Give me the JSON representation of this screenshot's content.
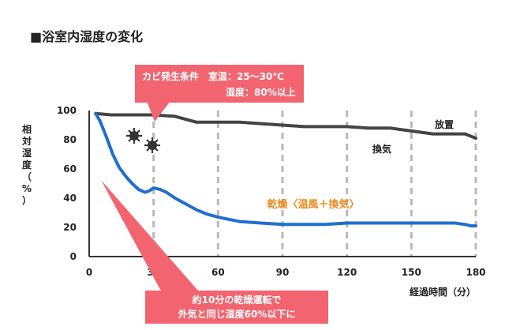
{
  "chart_data": {
    "type": "line",
    "title": "■浴室内湿度の変化",
    "xlabel": "経過時間（分）",
    "ylabel": "相対湿度（%）",
    "ylabel_chars": [
      "相",
      "対",
      "湿",
      "度",
      "（",
      "%",
      "）"
    ],
    "xlim": [
      0,
      180
    ],
    "ylim": [
      0,
      100
    ],
    "x_ticks": [
      "0",
      "30",
      "60",
      "90",
      "120",
      "150",
      "180"
    ],
    "y_ticks": [
      "100",
      "80",
      "60",
      "40",
      "20",
      "0"
    ],
    "grid": "vertical dashed",
    "series": [
      {
        "name": "放置",
        "color": "#444444",
        "x": [
          3,
          10,
          20,
          30,
          40,
          50,
          55,
          60,
          70,
          80,
          90,
          100,
          110,
          120,
          130,
          140,
          150,
          160,
          170,
          175,
          180
        ],
        "y": [
          98,
          97,
          97,
          97,
          96,
          92,
          92,
          92,
          92,
          91,
          90,
          89,
          89,
          89,
          88,
          88,
          86,
          84,
          84,
          84,
          81
        ]
      },
      {
        "name": "換気",
        "color": "#444444",
        "x": [],
        "y": []
      },
      {
        "name": "乾燥〈温風＋換気〉",
        "color": "#1f6fd0",
        "x": [
          3,
          5,
          8,
          11,
          14,
          17,
          20,
          23,
          26,
          28,
          30,
          33,
          36,
          40,
          45,
          50,
          55,
          60,
          70,
          80,
          90,
          100,
          110,
          120,
          130,
          140,
          150,
          160,
          170,
          175,
          178,
          180
        ],
        "y": [
          98,
          93,
          82,
          70,
          61,
          55,
          50,
          46,
          44,
          45,
          47,
          46,
          44,
          40,
          36,
          32,
          29,
          27,
          24,
          23,
          22,
          22,
          22,
          23,
          23,
          23,
          23,
          23,
          23,
          22,
          21,
          21
        ]
      }
    ],
    "annotations": {
      "callout_top": {
        "line1": "カビ発生条件　室温：25〜30℃",
        "line2": "湿度：80%以上",
        "color": "#f26570"
      },
      "callout_bottom": {
        "line1": "約10分の乾燥運転で",
        "line2": "外気と同じ湿度60%以下に",
        "color": "#f26570"
      },
      "mold_icons": [
        "mold-icon",
        "mold-icon"
      ]
    }
  }
}
